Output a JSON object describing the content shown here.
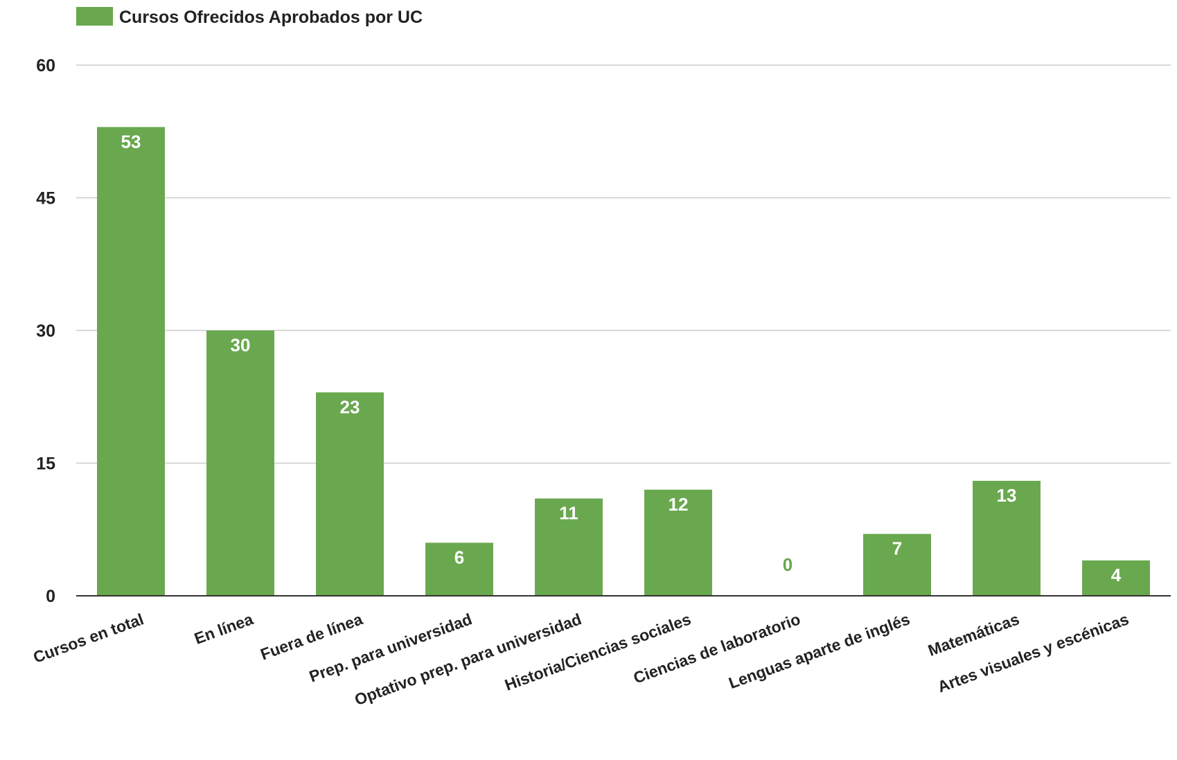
{
  "chart_data": {
    "type": "bar",
    "categories": [
      "Cursos en total",
      "En línea",
      "Fuera de línea",
      "Prep. para universidad",
      "Optativo prep. para universidad",
      "Historia/Ciencias sociales",
      "Ciencias de laboratorio",
      "Lenguas aparte de inglés",
      "Matemáticas",
      "Artes visuales y escénicas"
    ],
    "series": [
      {
        "name": "Cursos Ofrecidos Aprobados por UC",
        "values": [
          53,
          30,
          23,
          6,
          11,
          12,
          0,
          7,
          13,
          4
        ]
      }
    ],
    "title": "",
    "xlabel": "",
    "ylabel": "",
    "ylim": [
      0,
      60
    ],
    "yticks": [
      0,
      15,
      30,
      45,
      60
    ],
    "grid": true,
    "legend": "top-left",
    "data_labels": true
  },
  "colors": {
    "bar": "#6aa84f",
    "gridline": "#cccccc",
    "axis": "#333333",
    "label_inside": "#ffffff",
    "label_outside": "#6aa84f"
  }
}
